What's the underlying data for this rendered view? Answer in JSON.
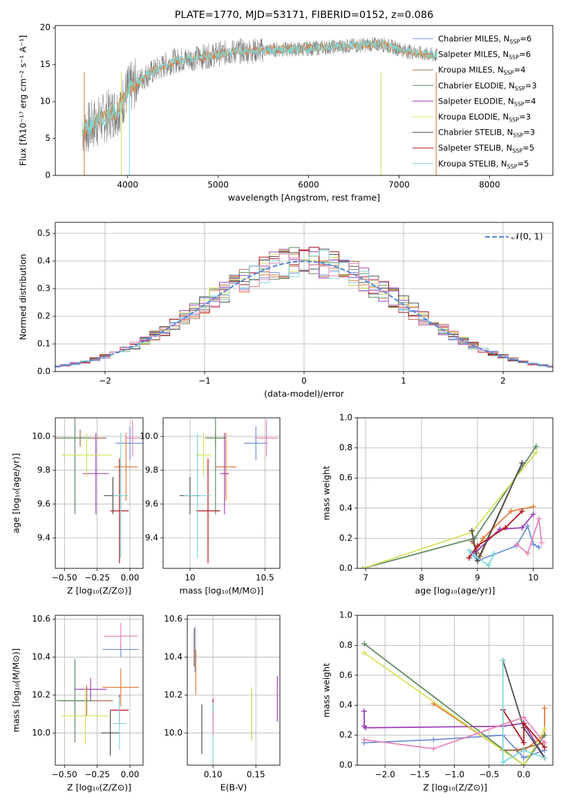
{
  "colors": [
    "#6c8ed6",
    "#e07b39",
    "#a86d47",
    "#5f8a5f",
    "#9b3cb7",
    "#d6e05a",
    "#4a4a4a",
    "#b3121d",
    "#7fd6d6",
    "#e683b8"
  ],
  "chart_data": [
    {
      "id": "spectrum",
      "type": "line",
      "title": "PLATE=1770, MJD=53171, FIBERID=0152, z=0.086",
      "xlabel": "wavelength [Angstrom, rest frame]",
      "ylabel": "Flux [fλ10⁻¹⁷ erg cm⁻² s⁻¹ A⁻¹]",
      "xlim": [
        3200,
        8700
      ],
      "ylim": [
        0,
        20.3
      ],
      "xticks": [
        4000,
        5000,
        6000,
        7000,
        8000
      ],
      "yticks": [
        0,
        5,
        10,
        15,
        20
      ],
      "grid": false,
      "legend_position": "right",
      "series": [
        {
          "name": "Chabrier MILES, N",
          "sub": "SSP",
          "suffix": "=6"
        },
        {
          "name": "Salpeter MILES, N",
          "sub": "SSP",
          "suffix": "=6"
        },
        {
          "name": "Kroupa MILES, N",
          "sub": "SSP",
          "suffix": "=4"
        },
        {
          "name": "Chabrier ELODIE, N",
          "sub": "SSP",
          "suffix": "=3"
        },
        {
          "name": "Salpeter ELODIE, N",
          "sub": "SSP",
          "suffix": "=4"
        },
        {
          "name": "Kroupa ELODIE, N",
          "sub": "SSP",
          "suffix": "=3"
        },
        {
          "name": "Chabrier STELIB, N",
          "sub": "SSP",
          "suffix": "=3"
        },
        {
          "name": "Salpeter STELIB, N",
          "sub": "SSP",
          "suffix": "=5"
        },
        {
          "name": "Kroupa STELIB, N",
          "sub": "SSP",
          "suffix": "=5"
        }
      ],
      "continuum": {
        "x": [
          3500,
          3700,
          3900,
          4000,
          4200,
          4500,
          4800,
          5200,
          5600,
          6000,
          6400,
          6800,
          7100,
          7400
        ],
        "y": [
          6,
          7.5,
          9,
          11.5,
          13.5,
          15.5,
          16,
          16.8,
          17,
          17.2,
          17.5,
          17.8,
          16.8,
          16.2
        ]
      }
    },
    {
      "id": "residuals",
      "type": "area",
      "xlabel": "(data-model)/error",
      "ylabel": "Normed distribution",
      "xlim": [
        -2.5,
        2.5
      ],
      "ylim": [
        0,
        0.54
      ],
      "xticks": [
        -2,
        -1,
        0,
        1,
        2
      ],
      "yticks": [
        0.0,
        0.1,
        0.2,
        0.3,
        0.4,
        0.5
      ],
      "grid": true,
      "legend_position": "top-right",
      "reference_curve": {
        "name": "𝒩(0, 1)",
        "mean": 0,
        "sigma": 1
      }
    },
    {
      "id": "age-vs-z",
      "type": "scatter",
      "xlabel": "Z [log₁₀(Z/Z⊙)]",
      "ylabel": "age  [log₁₀(age/yr)]",
      "xlim": [
        -0.57,
        0.1
      ],
      "ylim": [
        9.22,
        10.11
      ],
      "xticks": [
        -0.5,
        -0.25,
        0.0
      ],
      "xticklabels": [
        "−0.50",
        "−0.25",
        "0.00"
      ],
      "yticks": [
        9.4,
        9.6,
        9.8,
        10.0
      ],
      "grid": true,
      "points": [
        {
          "x": 0.0,
          "y": 9.96,
          "xerr": 0.11,
          "yerr": 0.1
        },
        {
          "x": -0.03,
          "y": 9.82,
          "xerr": 0.09,
          "yerr": 0.2
        },
        {
          "x": -0.38,
          "y": 9.99,
          "xerr": 0.2,
          "yerr": 0.05
        },
        {
          "x": -0.42,
          "y": 9.99,
          "xerr": 0.12,
          "yerr": 0.45
        },
        {
          "x": -0.26,
          "y": 9.78,
          "xerr": 0.1,
          "yerr": 0.24
        },
        {
          "x": -0.33,
          "y": 9.89,
          "xerr": 0.19,
          "yerr": 0.13
        },
        {
          "x": -0.13,
          "y": 9.65,
          "xerr": 0.07,
          "yerr": 0.11
        },
        {
          "x": -0.08,
          "y": 9.56,
          "xerr": 0.07,
          "yerr": 0.31
        },
        {
          "x": -0.07,
          "y": 9.65,
          "xerr": 0.06,
          "yerr": 0.37
        },
        {
          "x": 0.02,
          "y": 9.99,
          "xerr": 0.06,
          "yerr": 0.11
        }
      ]
    },
    {
      "id": "age-vs-mass",
      "type": "scatter",
      "xlabel": "mass [log₁₀(M/M⊙)]",
      "ylabel": "",
      "xlim": [
        9.82,
        10.6
      ],
      "ylim": [
        9.22,
        10.11
      ],
      "xticks": [
        10.0,
        10.5
      ],
      "yticks": [
        9.4,
        9.6,
        9.8,
        10.0
      ],
      "grid": true,
      "points": [
        {
          "x": 10.44,
          "y": 9.96,
          "xerr": 0.08,
          "yerr": 0.1
        },
        {
          "x": 10.24,
          "y": 9.82,
          "xerr": 0.07,
          "yerr": 0.2
        },
        {
          "x": 10.17,
          "y": 9.99,
          "xerr": 0.06,
          "yerr": 0.05
        },
        {
          "x": 10.17,
          "y": 9.99,
          "xerr": 0.07,
          "yerr": 0.45
        },
        {
          "x": 10.23,
          "y": 9.78,
          "xerr": 0.03,
          "yerr": 0.24
        },
        {
          "x": 10.09,
          "y": 9.89,
          "xerr": 0.05,
          "yerr": 0.13
        },
        {
          "x": 10.0,
          "y": 9.65,
          "xerr": 0.07,
          "yerr": 0.11
        },
        {
          "x": 10.12,
          "y": 9.56,
          "xerr": 0.08,
          "yerr": 0.31
        },
        {
          "x": 10.05,
          "y": 9.65,
          "xerr": 0.09,
          "yerr": 0.37
        },
        {
          "x": 10.51,
          "y": 9.99,
          "xerr": 0.08,
          "yerr": 0.11
        }
      ]
    },
    {
      "id": "mass-weight-vs-age",
      "type": "line",
      "xlabel": "age  [log₁₀(age/yr)]",
      "ylabel": "mass weight",
      "xlim": [
        6.85,
        10.35
      ],
      "ylim": [
        0,
        1.0
      ],
      "xticks": [
        7,
        8,
        9,
        10
      ],
      "yticks": [
        0.0,
        0.2,
        0.4,
        0.6,
        0.8,
        1.0
      ],
      "grid": true,
      "series": [
        {
          "x": [
            8.9,
            9.0,
            9.7,
            9.9,
            10.0,
            10.1
          ],
          "y": [
            0.1,
            0.05,
            0.15,
            0.28,
            0.16,
            0.14
          ]
        },
        {
          "x": [
            8.95,
            9.1,
            9.6,
            10.0
          ],
          "y": [
            0.1,
            0.2,
            0.38,
            0.41
          ]
        },
        {
          "x": [
            8.9,
            9.05,
            9.8
          ],
          "y": [
            0.18,
            0.08,
            0.7
          ]
        },
        {
          "x": [
            6.95,
            8.95,
            10.05
          ],
          "y": [
            0.0,
            0.2,
            0.81
          ]
        },
        {
          "x": [
            8.95,
            9.4,
            9.8,
            10.0
          ],
          "y": [
            0.1,
            0.26,
            0.27,
            0.36
          ]
        },
        {
          "x": [
            6.95,
            8.9,
            10.05
          ],
          "y": [
            0.0,
            0.24,
            0.77
          ]
        },
        {
          "x": [
            8.9,
            9.0,
            9.8
          ],
          "y": [
            0.25,
            0.05,
            0.7
          ]
        },
        {
          "x": [
            8.85,
            9.0,
            9.5,
            9.8
          ],
          "y": [
            0.07,
            0.15,
            0.27,
            0.38
          ]
        },
        {
          "x": [
            8.85,
            8.95,
            9.2,
            9.3
          ],
          "y": [
            0.12,
            0.08,
            0.02,
            0.1
          ]
        },
        {
          "x": [
            9.7,
            9.9,
            10.1,
            10.15
          ],
          "y": [
            0.16,
            0.1,
            0.33,
            0.17
          ]
        }
      ]
    },
    {
      "id": "mass-vs-z",
      "type": "scatter",
      "xlabel": "Z [log₁₀(Z/Z⊙)]",
      "ylabel": "mass [log₁₀(M/M⊙)]",
      "xlim": [
        -0.57,
        0.1
      ],
      "ylim": [
        9.83,
        10.62
      ],
      "xticks": [
        -0.5,
        -0.25,
        0.0
      ],
      "xticklabels": [
        "−0.50",
        "−0.25",
        "0.00"
      ],
      "yticks": [
        10.0,
        10.2,
        10.4,
        10.6
      ],
      "grid": true,
      "points": [
        {
          "x": -0.07,
          "y": 10.44,
          "xerr": 0.14,
          "yerr": 0.04
        },
        {
          "x": -0.07,
          "y": 10.24,
          "xerr": 0.14,
          "yerr": 0.1
        },
        {
          "x": -0.33,
          "y": 10.17,
          "xerr": 0.2,
          "yerr": 0.08
        },
        {
          "x": -0.42,
          "y": 10.17,
          "xerr": 0.14,
          "yerr": 0.22
        },
        {
          "x": -0.3,
          "y": 10.23,
          "xerr": 0.12,
          "yerr": 0.06
        },
        {
          "x": -0.34,
          "y": 10.09,
          "xerr": 0.18,
          "yerr": 0.15
        },
        {
          "x": -0.15,
          "y": 10.0,
          "xerr": 0.07,
          "yerr": 0.12
        },
        {
          "x": -0.08,
          "y": 10.12,
          "xerr": 0.07,
          "yerr": 0.08
        },
        {
          "x": -0.08,
          "y": 10.05,
          "xerr": 0.05,
          "yerr": 0.14
        },
        {
          "x": -0.07,
          "y": 10.51,
          "xerr": 0.13,
          "yerr": 0.07
        }
      ]
    },
    {
      "id": "mass-vs-ebv",
      "type": "scatter",
      "xlabel": "E(B-V)",
      "ylabel": "",
      "xlim": [
        0.07,
        0.178
      ],
      "ylim": [
        9.83,
        10.62
      ],
      "xticks": [
        0.1,
        0.15
      ],
      "xticklabels": [
        "0.10",
        "0.15"
      ],
      "yticks": [
        10.0,
        10.2,
        10.4,
        10.6
      ],
      "grid": true,
      "points": [
        {
          "x": 0.079,
          "y": 10.44,
          "xerr": 0.0,
          "yerr": 0.12
        },
        {
          "x": 0.08,
          "y": 10.32,
          "xerr": 0.0,
          "yerr": 0.12
        },
        {
          "x": 0.078,
          "y": 10.45,
          "xerr": 0.0,
          "yerr": 0.1
        },
        {
          "x": 0.145,
          "y": 10.1,
          "xerr": 0.0,
          "yerr": 0.14
        },
        {
          "x": 0.175,
          "y": 10.18,
          "xerr": 0.0,
          "yerr": 0.12
        },
        {
          "x": 0.145,
          "y": 10.1,
          "xerr": 0.0,
          "yerr": 0.14
        },
        {
          "x": 0.087,
          "y": 10.02,
          "xerr": 0.0,
          "yerr": 0.13
        },
        {
          "x": 0.1,
          "y": 10.12,
          "xerr": 0.0,
          "yerr": 0.06
        },
        {
          "x": 0.1,
          "y": 10.0,
          "xerr": 0.0,
          "yerr": 0.16
        },
        {
          "x": 0.1,
          "y": 10.05,
          "xerr": 0.0,
          "yerr": 0.06
        }
      ]
    },
    {
      "id": "mass-weight-vs-z",
      "type": "line",
      "xlabel": "Z [log₁₀(Z/Z⊙)]",
      "ylabel": "mass weight",
      "xlim": [
        -2.4,
        0.42
      ],
      "ylim": [
        0,
        1.0
      ],
      "xticks": [
        -2.0,
        -1.5,
        -1.0,
        -0.5,
        0.0
      ],
      "xticklabels": [
        "−2.0",
        "−1.5",
        "−1.0",
        "−0.5",
        "0.0"
      ],
      "yticks": [
        0.0,
        0.2,
        0.4,
        0.6,
        0.8,
        1.0
      ],
      "grid": true,
      "series": [
        {
          "x": [
            -2.3,
            -1.3,
            -0.3,
            0.0,
            0.3
          ],
          "y": [
            0.15,
            0.17,
            0.2,
            0.05,
            0.1
          ]
        },
        {
          "x": [
            -1.3,
            -0.3,
            0.0,
            0.3,
            0.3
          ],
          "y": [
            0.41,
            0.1,
            0.1,
            0.2,
            0.38
          ]
        },
        {
          "x": [
            -0.3,
            -0.1,
            0.3
          ],
          "y": [
            0.1,
            0.1,
            0.15
          ]
        },
        {
          "x": [
            -2.3,
            0.0,
            0.3
          ],
          "y": [
            0.81,
            0.0,
            0.2
          ]
        },
        {
          "x": [
            -2.3,
            -2.3,
            -2.28,
            -0.3,
            0.0,
            0.3
          ],
          "y": [
            0.36,
            0.26,
            0.25,
            0.26,
            0.28,
            0.05
          ]
        },
        {
          "x": [
            -2.3,
            0.0,
            0.3
          ],
          "y": [
            0.75,
            0.0,
            0.24
          ]
        },
        {
          "x": [
            -0.3,
            0.0,
            0.3
          ],
          "y": [
            0.7,
            0.25,
            0.05
          ]
        },
        {
          "x": [
            -0.3,
            0.0,
            0.0,
            0.3
          ],
          "y": [
            0.37,
            0.15,
            0.28,
            0.12
          ]
        },
        {
          "x": [
            -0.3,
            -0.3,
            0.0,
            0.3
          ],
          "y": [
            0.7,
            0.02,
            0.1,
            0.05
          ]
        },
        {
          "x": [
            -2.3,
            -1.3,
            0.0,
            0.3
          ],
          "y": [
            0.17,
            0.11,
            0.32,
            0.15
          ]
        }
      ]
    }
  ]
}
